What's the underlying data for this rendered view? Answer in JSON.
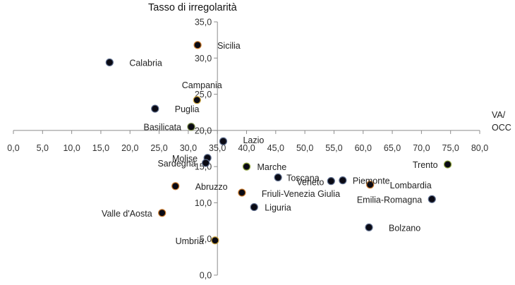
{
  "chart_data": {
    "type": "scatter",
    "title": "Tasso di irregolarità",
    "xlabel": "VA/ OCC",
    "xlabel_lines": [
      "VA/",
      "OCC"
    ],
    "ylabel": "",
    "xlim": [
      0,
      80
    ],
    "ylim": [
      0,
      35
    ],
    "x_ticks": [
      "0,0",
      "5,0",
      "10,0",
      "15,0",
      "20,0",
      "25,0",
      "30,0",
      "35,0",
      "40,0",
      "45,0",
      "50,0",
      "55,0",
      "60,0",
      "65,0",
      "70,0",
      "75,0",
      "80,0"
    ],
    "y_ticks": [
      "0,0",
      "5,0",
      "10,0",
      "15,0",
      "20,0",
      "25,0",
      "30,0",
      "35,0"
    ],
    "x_tick_values": [
      0,
      5,
      10,
      15,
      20,
      25,
      30,
      35,
      40,
      45,
      50,
      55,
      60,
      65,
      70,
      75,
      80
    ],
    "y_tick_values": [
      0,
      5,
      10,
      15,
      20,
      25,
      30,
      35
    ],
    "axes_cross_at": {
      "x": 35,
      "y": 20
    },
    "grid": false,
    "marker_color": "#0a0a14",
    "points": [
      {
        "name": "Sicilia",
        "x": 31.6,
        "y": 31.8,
        "label_pos": "right",
        "ring": "#c8782a"
      },
      {
        "name": "Calabria",
        "x": 16.5,
        "y": 29.4,
        "label_pos": "right",
        "ring": "#5a6a8a"
      },
      {
        "name": "Campania",
        "x": 31.5,
        "y": 24.2,
        "label_pos": "top",
        "ring": "#c8a03a"
      },
      {
        "name": "Puglia",
        "x": 24.3,
        "y": 23.0,
        "label_pos": "right",
        "ring": "#5a6a8a"
      },
      {
        "name": "Basilicata",
        "x": 30.5,
        "y": 20.5,
        "label_pos": "left",
        "ring": "#6a7a3a"
      },
      {
        "name": "Lazio",
        "x": 36.0,
        "y": 18.5,
        "label_pos": "right",
        "ring": "#5a6a8a"
      },
      {
        "name": "Molise",
        "x": 33.3,
        "y": 16.2,
        "label_pos": "left",
        "ring": "#5a6a8a"
      },
      {
        "name": "Sardegna",
        "x": 33.0,
        "y": 15.5,
        "label_pos": "left",
        "ring": "#5a6a8a"
      },
      {
        "name": "Marche",
        "x": 40.0,
        "y": 15.0,
        "label_pos": "right",
        "ring": "#8aa03a"
      },
      {
        "name": "Toscana",
        "x": 45.4,
        "y": 13.5,
        "label_pos": "right",
        "ring": "#5a6a8a"
      },
      {
        "name": "Veneto",
        "x": 54.5,
        "y": 13.0,
        "label_pos": "left",
        "ring": "#5a6a8a"
      },
      {
        "name": "Piemonte",
        "x": 56.5,
        "y": 13.1,
        "label_pos": "right",
        "ring": "#5a6a8a"
      },
      {
        "name": "Trento",
        "x": 74.5,
        "y": 15.3,
        "label_pos": "left",
        "ring": "#8aa03a"
      },
      {
        "name": "Lombardia",
        "x": 61.2,
        "y": 12.5,
        "label_pos": "right",
        "ring": "#c8782a"
      },
      {
        "name": "Abruzzo",
        "x": 27.8,
        "y": 12.3,
        "label_pos": "right",
        "ring": "#c8782a"
      },
      {
        "name": "Friuli-Venezia Giulia",
        "x": 39.2,
        "y": 11.4,
        "label_pos": "right",
        "ring": "#c8782a"
      },
      {
        "name": "Emilia-Romagna",
        "x": 71.8,
        "y": 10.5,
        "label_pos": "left",
        "ring": "#5a6a8a"
      },
      {
        "name": "Liguria",
        "x": 41.3,
        "y": 9.4,
        "label_pos": "right",
        "ring": "#5a6a8a"
      },
      {
        "name": "Valle d'Aosta",
        "x": 25.5,
        "y": 8.6,
        "label_pos": "left",
        "ring": "#c8782a"
      },
      {
        "name": "Bolzano",
        "x": 61.0,
        "y": 6.6,
        "label_pos": "right",
        "ring": "#5a6a8a"
      },
      {
        "name": "Umbria",
        "x": 34.6,
        "y": 4.8,
        "label_pos": "left",
        "ring": "#c8a03a"
      }
    ]
  }
}
